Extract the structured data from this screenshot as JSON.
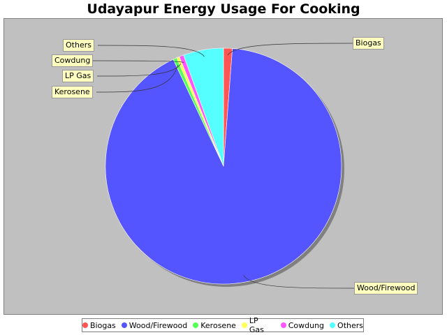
{
  "chart_data": {
    "type": "pie",
    "title": "Udayapur Energy Usage For Cooking",
    "slices": [
      {
        "label": "Biogas",
        "value": 1.2,
        "color": "#ff5555"
      },
      {
        "label": "Wood/Firewood",
        "value": 91.8,
        "color": "#5555ff"
      },
      {
        "label": "Kerosene",
        "value": 0.5,
        "color": "#55ff55"
      },
      {
        "label": "LP Gas",
        "value": 0.4,
        "color": "#ffff55"
      },
      {
        "label": "Cowdung",
        "value": 0.6,
        "color": "#ff55ff"
      },
      {
        "label": "Others",
        "value": 5.5,
        "color": "#55ffff"
      }
    ],
    "legend_position": "bottom"
  }
}
